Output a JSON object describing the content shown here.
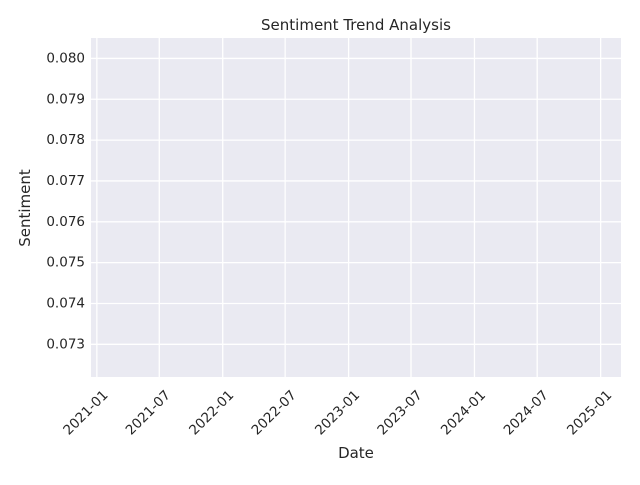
{
  "chart_data": {
    "type": "line",
    "title": "Sentiment Trend Analysis",
    "xlabel": "Date",
    "ylabel": "Sentiment",
    "x_ticks": [
      "2021-01",
      "2021-07",
      "2022-01",
      "2022-07",
      "2023-01",
      "2023-07",
      "2024-01",
      "2024-07",
      "2025-01"
    ],
    "y_ticks": [
      "0.073",
      "0.074",
      "0.075",
      "0.076",
      "0.077",
      "0.078",
      "0.079",
      "0.080"
    ],
    "xlim": [
      "2020-12-15",
      "2025-03-01"
    ],
    "ylim": [
      0.0722,
      0.0805
    ],
    "grid": true,
    "series": [
      {
        "x": [],
        "y": []
      }
    ],
    "colors": {
      "plot_background": "#eaeaf2",
      "grid": "#ffffff",
      "text": "#262626"
    }
  }
}
